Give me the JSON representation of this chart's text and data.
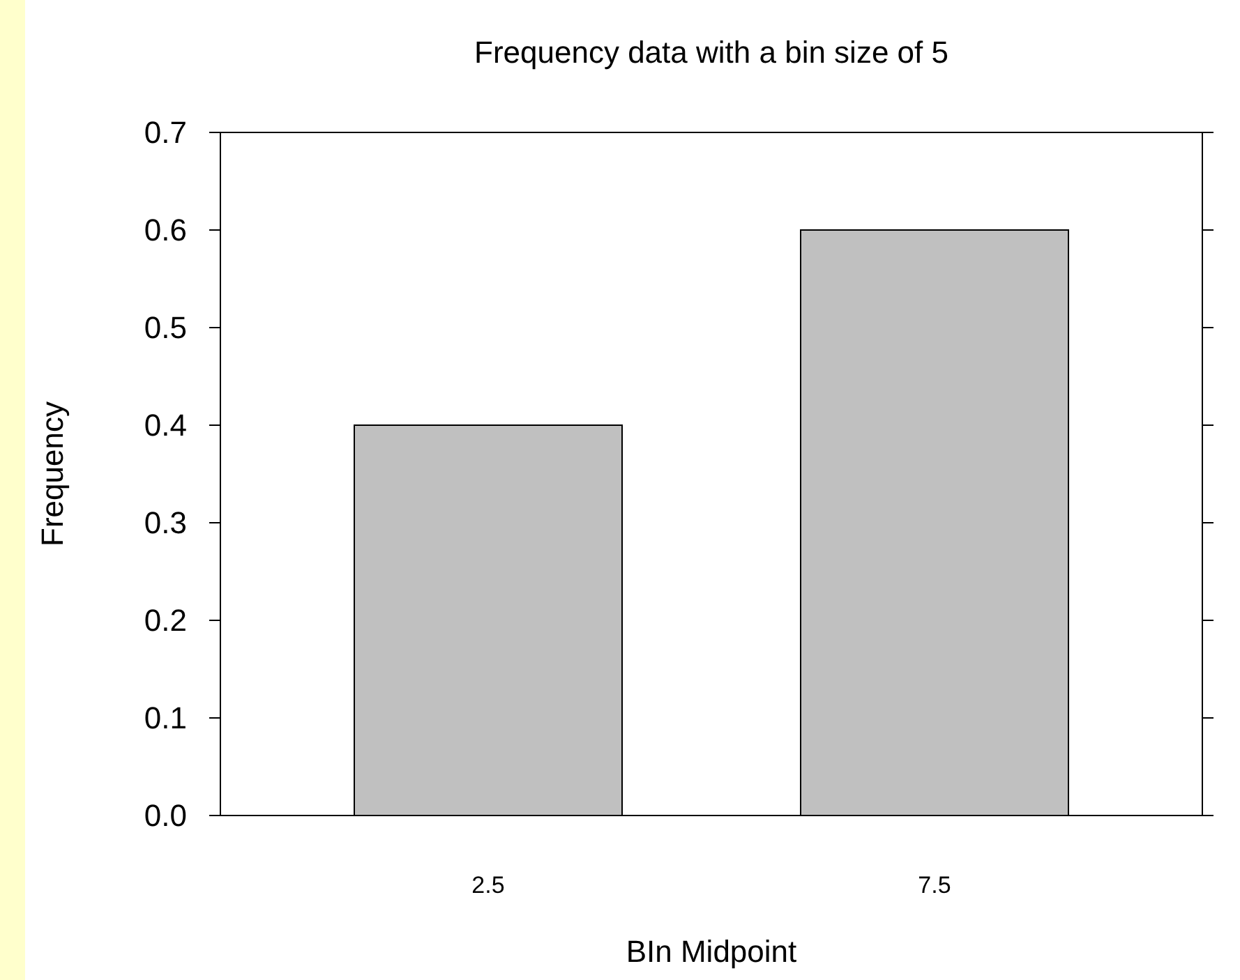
{
  "chart_data": {
    "type": "bar",
    "title": "Frequency data with a bin size of 5",
    "xlabel": "BIn Midpoint",
    "ylabel": "Frequency",
    "categories": [
      "2.5",
      "7.5"
    ],
    "values": [
      0.4,
      0.6
    ],
    "color": "#c0c0c0",
    "ylim": [
      0,
      0.7
    ],
    "yticks": [
      {
        "value": 0,
        "label": "0.0"
      },
      {
        "value": 0.1,
        "label": "0.1"
      },
      {
        "value": 0.2,
        "label": "0.2"
      },
      {
        "value": 0.3,
        "label": "0.3"
      },
      {
        "value": 0.4,
        "label": "0.4"
      },
      {
        "value": 0.5,
        "label": "0.5"
      },
      {
        "value": 0.6,
        "label": "0.6"
      },
      {
        "value": 0.7,
        "label": "0.7"
      }
    ],
    "grid": false
  }
}
